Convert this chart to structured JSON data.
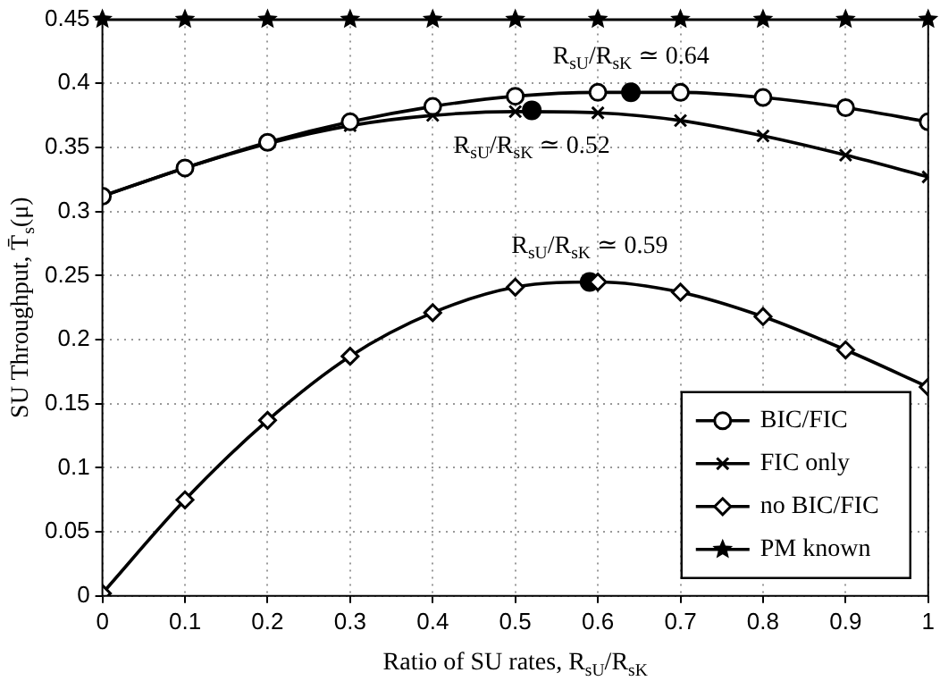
{
  "chart_data": {
    "type": "line",
    "xlabel": "Ratio of SU rates, R$_{sU}$/R$_{sK}$",
    "ylabel": "SU Throughput, T̄$_{s}$(μ)",
    "x": [
      0,
      0.1,
      0.2,
      0.3,
      0.4,
      0.5,
      0.6,
      0.7,
      0.8,
      0.9,
      1
    ],
    "series": [
      {
        "name": "BIC/FIC",
        "color": "#000000",
        "marker": "circle",
        "values": [
          0.312,
          0.334,
          0.354,
          0.37,
          0.382,
          0.39,
          0.393,
          0.393,
          0.389,
          0.381,
          0.37
        ]
      },
      {
        "name": "FIC only",
        "color": "#000000",
        "marker": "cross",
        "values": [
          0.312,
          0.334,
          0.353,
          0.367,
          0.375,
          0.378,
          0.377,
          0.371,
          0.359,
          0.344,
          0.327
        ]
      },
      {
        "name": "no BIC/FIC",
        "color": "#000000",
        "marker": "diamond",
        "values": [
          0.002,
          0.075,
          0.137,
          0.187,
          0.221,
          0.241,
          0.245,
          0.237,
          0.218,
          0.192,
          0.163
        ]
      },
      {
        "name": "PM known",
        "color": "#000000",
        "marker": "star",
        "values": [
          0.45,
          0.45,
          0.45,
          0.45,
          0.45,
          0.45,
          0.45,
          0.45,
          0.45,
          0.45,
          0.45
        ]
      },
      {
        "type": "scatter",
        "color": "#000000",
        "x": [
          0.64,
          0.52,
          0.59
        ],
        "values": [
          0.393,
          0.379,
          0.245
        ]
      }
    ],
    "annotations": [
      {
        "text": "R$_{sU}$/R$_{sK}$ ≃ 0.64",
        "x": 0.64,
        "y": 0.393
      },
      {
        "text": "R$_{sU}$/R$_{sK}$ ≃ 0.52",
        "x": 0.52,
        "y": 0.379
      },
      {
        "text": "R$_{sU}$/R$_{sK}$ ≃ 0.59",
        "x": 0.59,
        "y": 0.245
      }
    ],
    "xlim": [
      0,
      1
    ],
    "xticks": [
      0,
      0.1,
      0.2,
      0.3,
      0.4,
      0.5,
      0.6,
      0.7,
      0.8,
      0.9,
      1
    ],
    "ylim": [
      0,
      0.45
    ],
    "yticks": [
      0,
      0.05,
      0.1,
      0.15,
      0.2,
      0.25,
      0.3,
      0.35,
      0.4,
      0.45
    ],
    "grid": true,
    "legend": "bottom right",
    "line_style": "solid"
  }
}
